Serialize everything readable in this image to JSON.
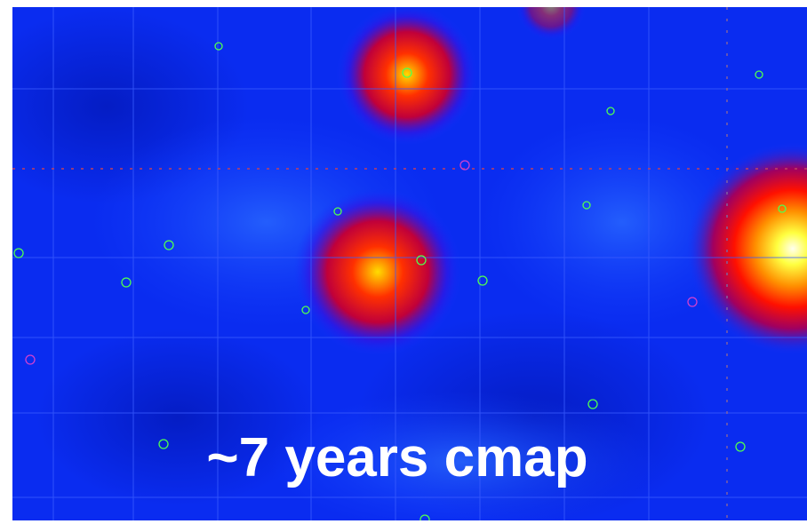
{
  "caption": "~7 years cmap"
}
